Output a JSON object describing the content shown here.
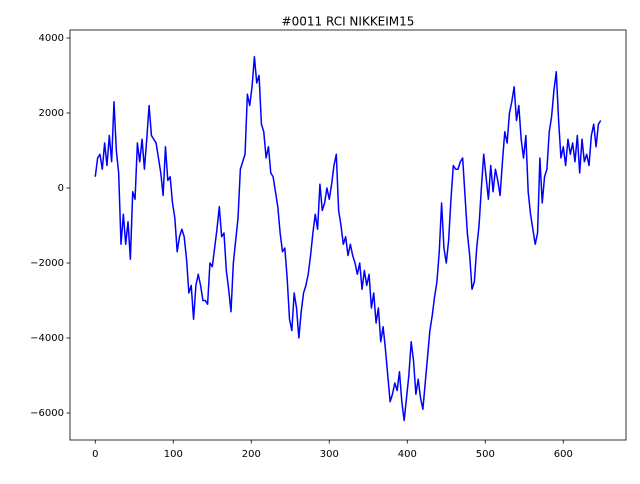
{
  "chart_data": {
    "type": "line",
    "title": "#0011 RCI NIKKEIM15",
    "color": "#0000ff",
    "x": [
      0,
      3,
      6,
      9,
      12,
      15,
      18,
      21,
      24,
      27,
      30,
      33,
      36,
      39,
      42,
      45,
      48,
      51,
      54,
      57,
      60,
      63,
      66,
      69,
      72,
      75,
      78,
      81,
      84,
      87,
      90,
      93,
      96,
      99,
      102,
      105,
      108,
      111,
      114,
      117,
      120,
      123,
      126,
      129,
      132,
      135,
      138,
      141,
      144,
      147,
      150,
      153,
      156,
      159,
      162,
      165,
      168,
      171,
      174,
      177,
      180,
      183,
      186,
      189,
      192,
      195,
      198,
      201,
      204,
      207,
      210,
      213,
      216,
      219,
      222,
      225,
      228,
      231,
      234,
      237,
      240,
      243,
      246,
      249,
      252,
      255,
      258,
      261,
      264,
      267,
      270,
      273,
      276,
      279,
      282,
      285,
      288,
      291,
      294,
      297,
      300,
      303,
      306,
      309,
      312,
      315,
      318,
      321,
      324,
      327,
      330,
      333,
      336,
      339,
      342,
      345,
      348,
      351,
      354,
      357,
      360,
      363,
      366,
      369,
      372,
      375,
      378,
      381,
      384,
      387,
      390,
      393,
      396,
      399,
      402,
      405,
      408,
      411,
      414,
      417,
      420,
      423,
      426,
      429,
      432,
      435,
      438,
      441,
      444,
      447,
      450,
      453,
      456,
      459,
      462,
      465,
      468,
      471,
      474,
      477,
      480,
      483,
      486,
      489,
      492,
      495,
      498,
      501,
      504,
      507,
      510,
      513,
      516,
      519,
      522,
      525,
      528,
      531,
      534,
      537,
      540,
      543,
      546,
      549,
      552,
      555,
      558,
      561,
      564,
      567,
      570,
      573,
      576,
      579,
      582,
      585,
      588,
      591,
      594,
      597,
      600,
      603,
      606,
      609,
      612,
      615,
      618,
      621,
      624,
      627,
      630,
      633,
      636,
      639,
      642,
      645,
      648
    ],
    "values": [
      300,
      800,
      900,
      500,
      1200,
      600,
      1400,
      700,
      2300,
      1000,
      400,
      -1500,
      -700,
      -1500,
      -900,
      -1900,
      -100,
      -300,
      1200,
      700,
      1300,
      500,
      1300,
      2200,
      1400,
      1300,
      1200,
      800,
      400,
      -200,
      1100,
      200,
      300,
      -400,
      -800,
      -1700,
      -1300,
      -1100,
      -1300,
      -1900,
      -2800,
      -2600,
      -3500,
      -2600,
      -2300,
      -2600,
      -3000,
      -3000,
      -3100,
      -2000,
      -2100,
      -1600,
      -1100,
      -500,
      -1300,
      -1200,
      -2200,
      -2700,
      -3300,
      -2000,
      -1400,
      -800,
      500,
      700,
      900,
      2500,
      2200,
      2700,
      3500,
      2800,
      3000,
      1700,
      1500,
      800,
      1100,
      400,
      300,
      -100,
      -500,
      -1200,
      -1700,
      -1600,
      -2400,
      -3500,
      -3800,
      -2800,
      -3200,
      -4000,
      -3300,
      -2800,
      -2600,
      -2300,
      -1800,
      -1200,
      -700,
      -1100,
      100,
      -600,
      -400,
      0,
      -300,
      100,
      600,
      900,
      -600,
      -1000,
      -1500,
      -1300,
      -1800,
      -1500,
      -1800,
      -2000,
      -2300,
      -2000,
      -2700,
      -2200,
      -2600,
      -2300,
      -3200,
      -2800,
      -3600,
      -3200,
      -4100,
      -3700,
      -4300,
      -5000,
      -5700,
      -5500,
      -5200,
      -5400,
      -4900,
      -5700,
      -6200,
      -5600,
      -5000,
      -4100,
      -4600,
      -5500,
      -5100,
      -5600,
      -5900,
      -5200,
      -4500,
      -3800,
      -3400,
      -2900,
      -2500,
      -1700,
      -400,
      -1600,
      -2000,
      -1400,
      -300,
      600,
      500,
      500,
      700,
      800,
      -200,
      -1200,
      -1800,
      -2700,
      -2500,
      -1600,
      -1000,
      0,
      900,
      300,
      -300,
      600,
      -100,
      500,
      200,
      -200,
      700,
      1500,
      1200,
      2000,
      2300,
      2700,
      1800,
      2200,
      1300,
      800,
      1400,
      -100,
      -700,
      -1100,
      -1500,
      -1200,
      800,
      -400,
      300,
      500,
      1500,
      1900,
      2600,
      3100,
      1800,
      800,
      1100,
      600,
      1300,
      900,
      1200,
      700,
      1400,
      400,
      1300,
      700,
      900,
      600,
      1400,
      1700,
      1100,
      1700,
      1800
    ],
    "xlim": [
      -32.4,
      680.4
    ],
    "ylim": [
      -6720,
      4213
    ],
    "xticks": [
      0,
      100,
      200,
      300,
      400,
      500,
      600
    ],
    "yticks": [
      {
        "value": -6000,
        "label": "−6000"
      },
      {
        "value": -4000,
        "label": "−4000"
      },
      {
        "value": -2000,
        "label": "−2000"
      },
      0,
      2000,
      4000
    ]
  }
}
